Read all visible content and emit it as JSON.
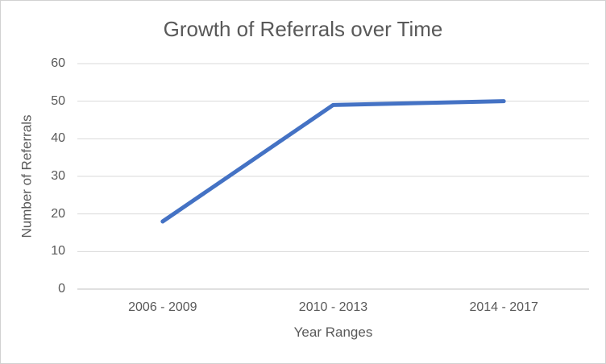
{
  "chart_data": {
    "type": "line",
    "title": "Growth of Referrals over Time",
    "xlabel": "Year Ranges",
    "ylabel": "Number of Referrals",
    "categories": [
      "2006 - 2009",
      "2010 - 2013",
      "2014 - 2017"
    ],
    "values": [
      18,
      49,
      50
    ],
    "ylim": [
      0,
      60
    ],
    "yticks": [
      0,
      10,
      20,
      30,
      40,
      50,
      60
    ],
    "grid": true,
    "legend": false,
    "markers": false,
    "colors": {
      "line": "#4472C4",
      "text": "#595959",
      "gridline": "#D9D9D9",
      "axis_line": "#CDCDCD",
      "background": "#FFFFFF",
      "border": "#D2D2D2"
    }
  }
}
